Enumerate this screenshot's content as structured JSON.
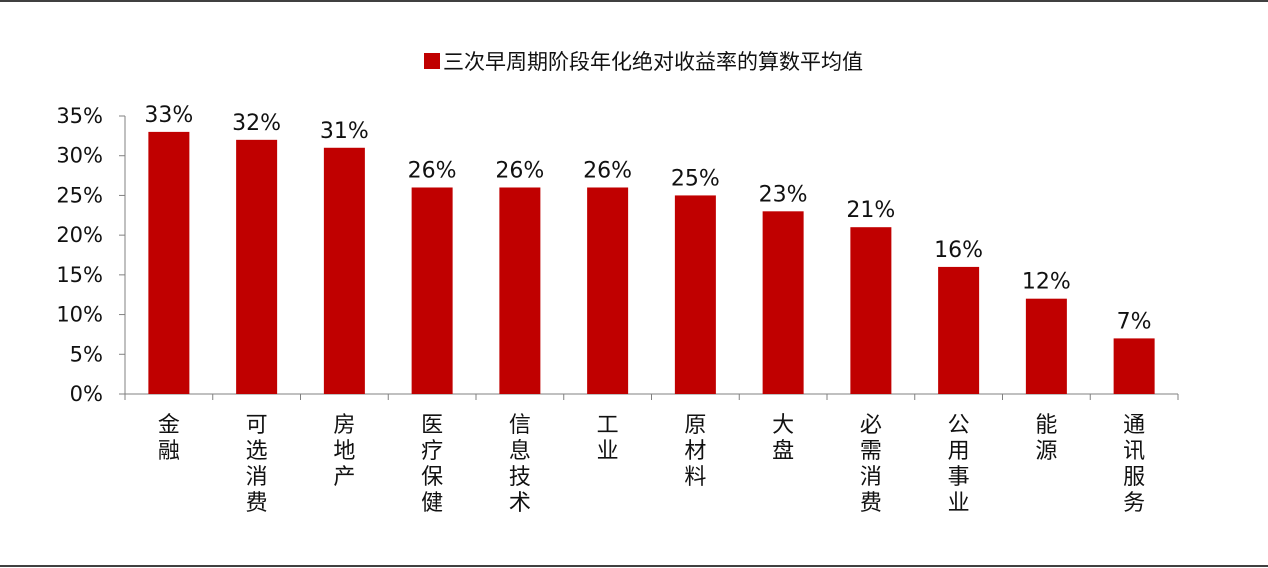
{
  "chart_data": {
    "type": "bar",
    "legend": {
      "label": "三次早周期阶段年化绝对收益率的算数平均值",
      "position": "top-center"
    },
    "categories": [
      "金融",
      "可选消费",
      "房地产",
      "医疗保健",
      "信息技术",
      "工业",
      "原材料",
      "大盘",
      "必需消费",
      "公用事业",
      "能源",
      "通讯服务"
    ],
    "values": [
      0.33,
      0.32,
      0.31,
      0.26,
      0.26,
      0.26,
      0.25,
      0.23,
      0.21,
      0.16,
      0.12,
      0.07
    ],
    "data_labels": [
      "33%",
      "32%",
      "31%",
      "26%",
      "26%",
      "26%",
      "25%",
      "23%",
      "21%",
      "16%",
      "12%",
      "7%"
    ],
    "y_ticks": [
      "0%",
      "5%",
      "10%",
      "15%",
      "20%",
      "25%",
      "30%",
      "35%"
    ],
    "ylim": [
      0,
      0.35
    ],
    "grid": false,
    "colors": {
      "bar": "#C00000",
      "axis": "#808080",
      "rule": "#000000"
    }
  }
}
